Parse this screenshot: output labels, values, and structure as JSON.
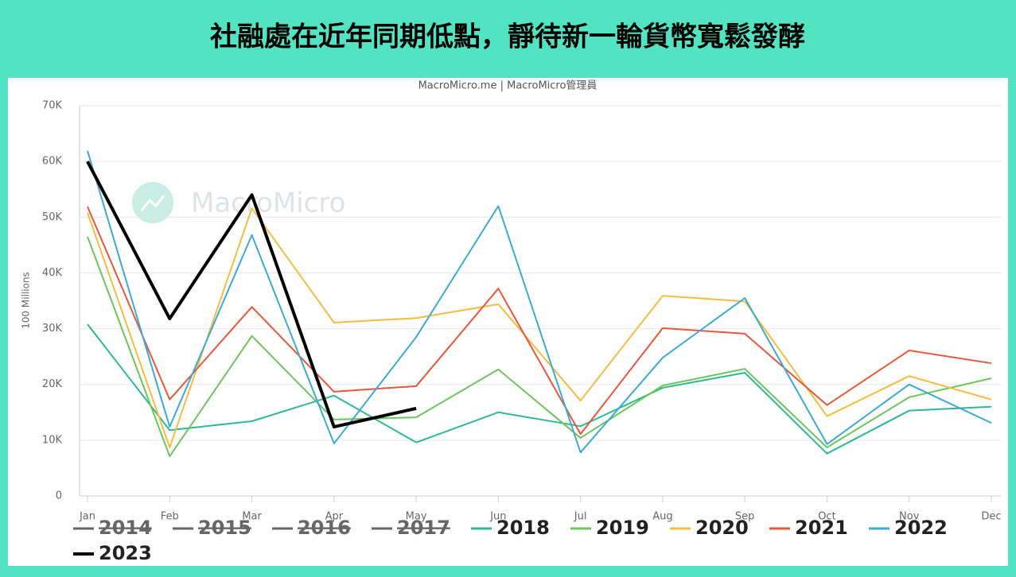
{
  "chart_data": {
    "type": "line",
    "title": "社融處在近年同期低點，靜待新一輪貨幣寬鬆發酵",
    "subtitle": "MacroMicro.me | MacroMicro管理員",
    "watermark": "MacroMicro",
    "y_label": "100 Millions",
    "categories": [
      "Jan",
      "Feb",
      "Mar",
      "Apr",
      "May",
      "Jun",
      "Jul",
      "Aug",
      "Sep",
      "Oct",
      "Nov",
      "Dec"
    ],
    "ylim": [
      0,
      70000
    ],
    "yticks": [
      0,
      {
        "value": 10000,
        "label": "10K"
      },
      {
        "value": 20000,
        "label": "20K"
      },
      {
        "value": 30000,
        "label": "30K"
      },
      {
        "value": 40000,
        "label": "40K"
      },
      {
        "value": 50000,
        "label": "50K"
      },
      {
        "value": 60000,
        "label": "60K"
      },
      {
        "value": 70000,
        "label": "70K"
      }
    ],
    "grid": true,
    "legend": "bottom",
    "series": [
      {
        "name": "2014",
        "color": "#666666",
        "hidden": true,
        "values": [
          null,
          null,
          null,
          null,
          null,
          null,
          null,
          null,
          null,
          null,
          null,
          null
        ]
      },
      {
        "name": "2015",
        "color": "#666666",
        "hidden": true,
        "values": [
          null,
          null,
          null,
          null,
          null,
          null,
          null,
          null,
          null,
          null,
          null,
          null
        ]
      },
      {
        "name": "2016",
        "color": "#666666",
        "hidden": true,
        "values": [
          null,
          null,
          null,
          null,
          null,
          null,
          null,
          null,
          null,
          null,
          null,
          null
        ]
      },
      {
        "name": "2017",
        "color": "#666666",
        "hidden": true,
        "values": [
          null,
          null,
          null,
          null,
          null,
          null,
          null,
          null,
          null,
          null,
          null,
          null
        ]
      },
      {
        "name": "2018",
        "color": "#2fb896",
        "values": [
          30800,
          11800,
          13400,
          18000,
          9600,
          15000,
          12500,
          19400,
          22100,
          7600,
          15300,
          16000
        ]
      },
      {
        "name": "2019",
        "color": "#6cc65a",
        "values": [
          46500,
          7100,
          28700,
          13700,
          14100,
          22700,
          10400,
          19800,
          22800,
          8700,
          17700,
          21100
        ]
      },
      {
        "name": "2020",
        "color": "#f5bc42",
        "values": [
          50800,
          8700,
          51600,
          31100,
          31900,
          34400,
          17100,
          35900,
          34900,
          14300,
          21500,
          17300
        ]
      },
      {
        "name": "2021",
        "color": "#e8573a",
        "values": [
          51900,
          17300,
          33900,
          18700,
          19700,
          37200,
          11100,
          30100,
          29100,
          16300,
          26100,
          23800
        ]
      },
      {
        "name": "2022",
        "color": "#3da9d6",
        "values": [
          61900,
          12400,
          46800,
          9400,
          28500,
          52000,
          7800,
          24800,
          35500,
          9300,
          20000,
          13100
        ]
      },
      {
        "name": "2023",
        "color": "#000000",
        "width": 4,
        "values": [
          60000,
          31800,
          54000,
          12400,
          15700,
          null,
          null,
          null,
          null,
          null,
          null,
          null
        ]
      }
    ]
  }
}
